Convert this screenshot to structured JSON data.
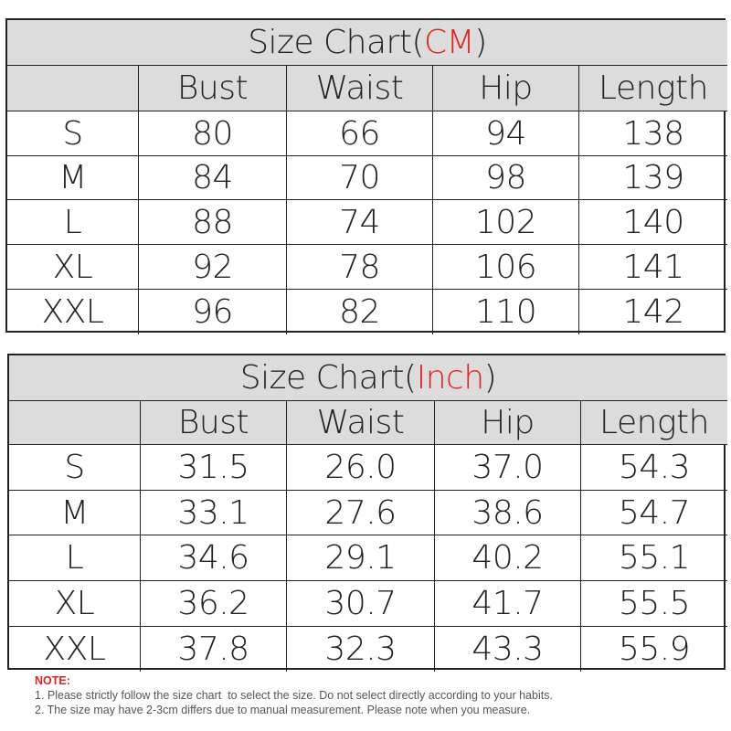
{
  "tables": [
    {
      "title": {
        "before": "Size Chart(",
        "unit": "CM",
        "after": ")"
      },
      "columns": [
        "Bust",
        "Waist",
        "Hip",
        "Length"
      ],
      "rows": [
        [
          "S",
          "80",
          "66",
          "94",
          "138"
        ],
        [
          "M",
          "84",
          "70",
          "98",
          "139"
        ],
        [
          "L",
          "88",
          "74",
          "102",
          "140"
        ],
        [
          "XL",
          "92",
          "78",
          "106",
          "141"
        ],
        [
          "XXL",
          "96",
          "82",
          "110",
          "142"
        ]
      ]
    },
    {
      "title": {
        "before": "Size Chart(",
        "unit": "Inch",
        "after": ")"
      },
      "columns": [
        "Bust",
        "Waist",
        "Hip",
        "Length"
      ],
      "rows": [
        [
          "S",
          "31.5",
          "26.0",
          "37.0",
          "54.3"
        ],
        [
          "M",
          "33.1",
          "27.6",
          "38.6",
          "54.7"
        ],
        [
          "L",
          "34.6",
          "29.1",
          "40.2",
          "55.1"
        ],
        [
          "XL",
          "36.2",
          "30.7",
          "41.7",
          "55.5"
        ],
        [
          "XXL",
          "37.8",
          "32.3",
          "43.3",
          "55.9"
        ]
      ]
    }
  ],
  "note": {
    "heading": "NOTE:",
    "lines": [
      "1. Please strictly follow the size chart  to select the size. Do not select directly according to your habits.",
      "2. The size may have 2-3cm differs due to manual measurement. Please note when you measure."
    ]
  }
}
